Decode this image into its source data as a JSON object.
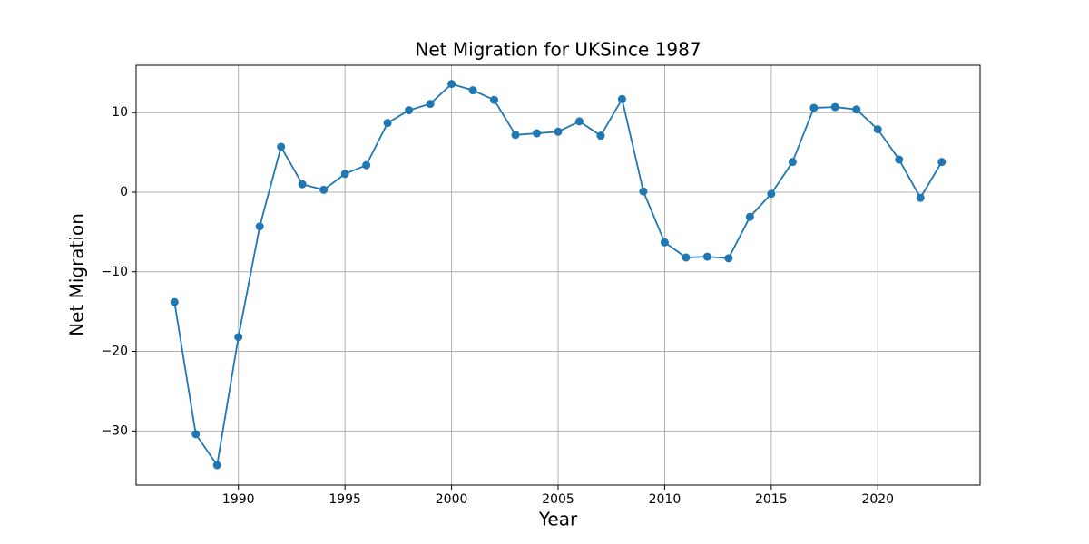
{
  "chart_data": {
    "type": "line",
    "title": "Net Migration for UKSince 1987",
    "xlabel": "Year",
    "ylabel": "Net Migration",
    "x": [
      1987,
      1988,
      1989,
      1990,
      1991,
      1992,
      1993,
      1994,
      1995,
      1996,
      1997,
      1998,
      1999,
      2000,
      2001,
      2002,
      2003,
      2004,
      2005,
      2006,
      2007,
      2008,
      2009,
      2010,
      2011,
      2012,
      2013,
      2014,
      2015,
      2016,
      2017,
      2018,
      2019,
      2020,
      2021,
      2022,
      2023
    ],
    "series": [
      {
        "color": "#1f77b4",
        "values": [
          -13.8,
          -30.4,
          -34.3,
          -18.2,
          -4.3,
          5.7,
          1.0,
          0.3,
          2.3,
          3.4,
          8.7,
          10.3,
          11.1,
          13.6,
          12.8,
          11.6,
          7.2,
          7.4,
          7.6,
          8.9,
          7.1,
          11.7,
          0.1,
          -6.3,
          -8.2,
          -8.1,
          -8.3,
          -3.1,
          -0.2,
          3.8,
          10.6,
          10.7,
          10.4,
          7.9,
          4.1,
          -0.7,
          3.8
        ]
      }
    ],
    "xlim": [
      1985.2,
      2024.8
    ],
    "ylim": [
      -36.8,
      15.95
    ],
    "xticks": [
      1990,
      1995,
      2000,
      2005,
      2010,
      2015,
      2020
    ],
    "yticks": [
      {
        "value": -30,
        "label": "−30"
      },
      {
        "value": -20,
        "label": "−20"
      },
      {
        "value": -10,
        "label": "−10"
      },
      0,
      10
    ],
    "grid": true,
    "markers": true
  }
}
